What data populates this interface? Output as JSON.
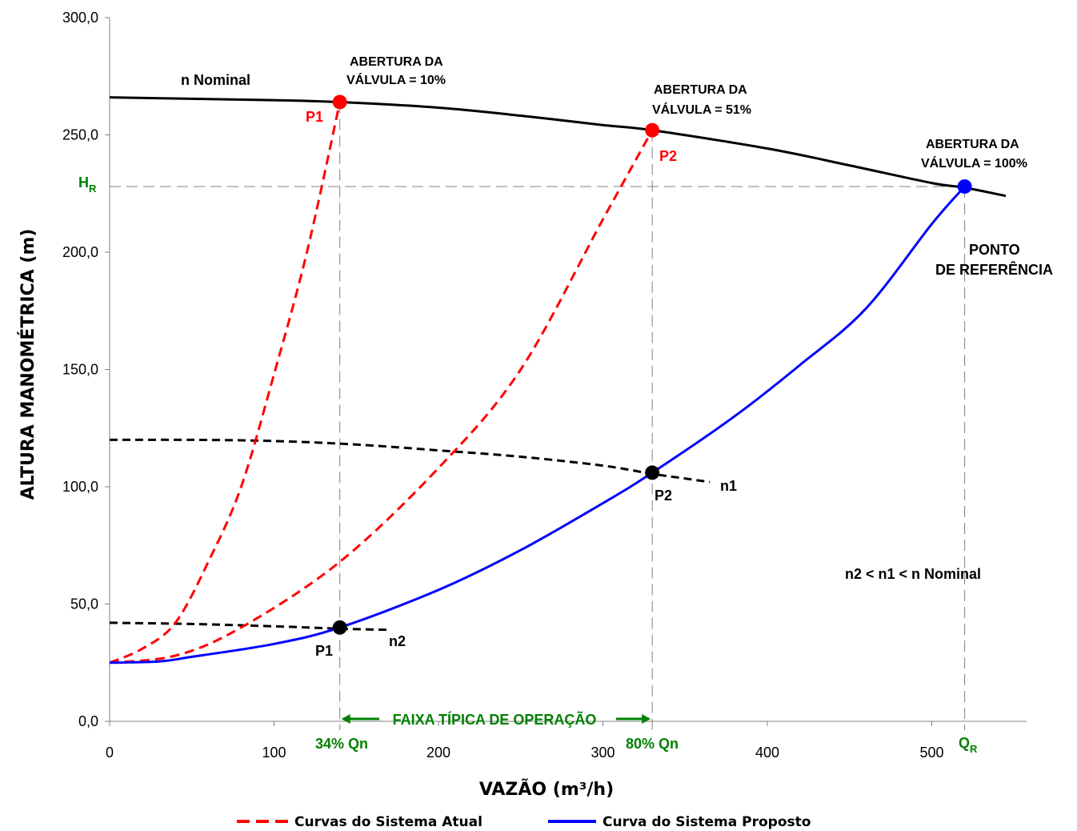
{
  "chart_data": {
    "type": "line",
    "xlabel": "VAZÃO (m³/h)",
    "ylabel": "ALTURA MANOMÉTRICA (m)",
    "xlim": [
      0,
      560
    ],
    "ylim": [
      0,
      300
    ],
    "x_ticks": [
      "0",
      "100",
      "200",
      "300",
      "400",
      "500"
    ],
    "y_ticks": [
      "0,0",
      "50,0",
      "100,0",
      "150,0",
      "200,0",
      "250,0",
      "300,0"
    ],
    "x_tick_values": [
      0,
      100,
      200,
      300,
      400,
      500
    ],
    "y_tick_values": [
      0,
      50,
      100,
      150,
      200,
      250,
      300
    ],
    "series": [
      {
        "name": "n Nominal",
        "style": "solid",
        "color": "#000000",
        "x": [
          0,
          50,
          100,
          140,
          200,
          250,
          300,
          330,
          400,
          450,
          500,
          520,
          545
        ],
        "y": [
          266,
          265.4,
          264.8,
          264,
          261.6,
          258.2,
          254.2,
          252,
          244.2,
          237,
          229.5,
          227.5,
          224
        ]
      },
      {
        "name": "n1",
        "style": "dashed",
        "color": "#000000",
        "x": [
          0,
          50,
          100,
          150,
          200,
          250,
          300,
          330,
          350,
          365
        ],
        "y": [
          120,
          120,
          119.5,
          118,
          115.5,
          112.8,
          109,
          105.5,
          103.5,
          102
        ]
      },
      {
        "name": "n2",
        "style": "dashed",
        "color": "#000000",
        "x": [
          0,
          50,
          100,
          140,
          170
        ],
        "y": [
          42,
          41.5,
          40.5,
          39.5,
          39
        ]
      },
      {
        "name": "Curvas do Sistema Atual",
        "style": "dashed",
        "color": "#ff0000",
        "x": [
          0,
          20,
          40,
          60,
          80,
          100,
          120,
          140
        ],
        "y": [
          25,
          31,
          42,
          68,
          100,
          148,
          200,
          264
        ]
      },
      {
        "name": "Curvas do Sistema Atual",
        "style": "dashed",
        "color": "#ff0000",
        "x": [
          0,
          40,
          80,
          140,
          200,
          250,
          300,
          330
        ],
        "y": [
          25,
          28,
          40,
          68,
          108,
          150,
          214,
          252
        ]
      },
      {
        "name": "Curva do Sistema Proposto",
        "style": "solid",
        "color": "#0000ff",
        "x": [
          0,
          30,
          50,
          100,
          140,
          200,
          250,
          300,
          330,
          380,
          420,
          460,
          500,
          520
        ],
        "y": [
          25,
          25.5,
          27.5,
          33,
          40,
          56,
          73,
          93,
          106,
          130,
          152,
          176,
          212,
          228
        ]
      }
    ],
    "points": [
      {
        "label": "P1",
        "x": 140,
        "y": 264,
        "color": "#ff0000"
      },
      {
        "label": "P2",
        "x": 330,
        "y": 252,
        "color": "#ff0000"
      },
      {
        "label": "",
        "x": 520,
        "y": 228,
        "color": "#0000ff"
      },
      {
        "label": "P2",
        "x": 330,
        "y": 106,
        "color": "#000000"
      },
      {
        "label": "P1",
        "x": 140,
        "y": 40,
        "color": "#000000"
      }
    ],
    "reference_lines": {
      "HR": 228,
      "x_34": 140,
      "x_80": 330,
      "QR": 520
    },
    "annotations": {
      "n_nominal": "n Nominal",
      "valve10_l1": "ABERTURA DA",
      "valve10_l2": "VÁLVULA = 10%",
      "valve51_l1": "ABERTURA DA",
      "valve51_l2": "VÁLVULA = 51%",
      "valve100_l1": "ABERTURA DA",
      "valve100_l2": "VÁLVULA = 100%",
      "ref_l1": "PONTO",
      "ref_l2": "DE REFERÊNCIA",
      "p1_red": "P1",
      "p2_red": "P2",
      "p2_black": "P2",
      "p1_black": "P1",
      "n1": "n1",
      "n2": "n2",
      "relation": "n2 < n1 < n Nominal",
      "hr_main": "H",
      "hr_sub": "R",
      "qr_main": "Q",
      "qr_sub": "R",
      "qn34": "34% Qn",
      "qn80": "80% Qn",
      "range": "FAIXA TÍPICA DE OPERAÇÃO"
    },
    "colors": {
      "red": "#ff0000",
      "blue": "#0000ff",
      "black": "#000000",
      "green": "#008000",
      "ref": "#808080"
    },
    "legend": [
      {
        "label": "Curvas do Sistema Atual",
        "color": "#ff0000",
        "style": "dashed"
      },
      {
        "label": "Curva do Sistema Proposto",
        "color": "#0000ff",
        "style": "solid"
      }
    ]
  }
}
